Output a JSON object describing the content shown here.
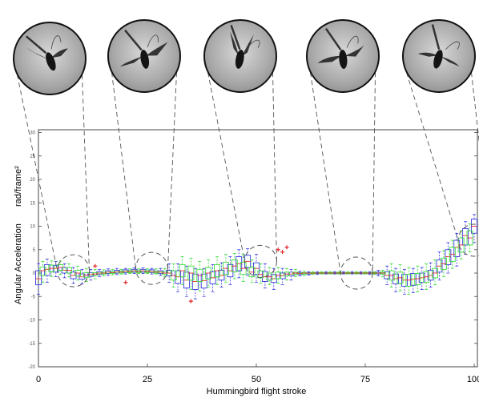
{
  "chart_data": {
    "type": "box",
    "title": "",
    "xlabel": "Hummingbird flight stroke",
    "ylabel": "Angular Acceleration",
    "yunit": "rad/frame²",
    "xlim": [
      0,
      100
    ],
    "ylim": [
      -20,
      30
    ],
    "xticks": [
      0,
      25,
      50,
      75,
      100
    ],
    "xtick_labels": [
      "0",
      "25",
      "50",
      "75",
      "100"
    ],
    "yticks": [
      -20,
      -15,
      -10,
      -5,
      0,
      5,
      10,
      15,
      20,
      25,
      30
    ],
    "grid": false,
    "legend": "none",
    "colors": {
      "series_a": "#3a3ae0",
      "series_b": "#3dde3d",
      "outlier": "#e02020",
      "annotation": "#555555"
    },
    "series": [
      {
        "color": "blue",
        "x": [
          0,
          2,
          4,
          6,
          8,
          10,
          12,
          14,
          16,
          18,
          20,
          22,
          24,
          26,
          28,
          30,
          32,
          34,
          36,
          38,
          40,
          42,
          44,
          46,
          48,
          50,
          52,
          54,
          56,
          58,
          60,
          62,
          64,
          66,
          68,
          70,
          72,
          74,
          76,
          78,
          80,
          82,
          84,
          86,
          88,
          90,
          92,
          94,
          96,
          98,
          100
        ],
        "median": [
          -1.2,
          0.8,
          1.0,
          0.6,
          -0.5,
          -0.8,
          -0.3,
          0.0,
          0.2,
          0.3,
          0.4,
          0.5,
          0.5,
          0.4,
          0.2,
          0.0,
          -0.8,
          -1.5,
          -1.8,
          -1.6,
          -1.0,
          -0.5,
          0.5,
          2.0,
          2.5,
          1.0,
          -0.8,
          -1.2,
          -0.6,
          -0.2,
          -0.1,
          0.0,
          0.0,
          0.0,
          0.0,
          0.0,
          0.0,
          0.0,
          0.0,
          0.0,
          -0.5,
          -1.2,
          -1.5,
          -1.3,
          -1.0,
          -0.5,
          1.5,
          3.5,
          5.5,
          8.0,
          10.0
        ],
        "q1": [
          -2.5,
          -0.5,
          0.2,
          0.0,
          -1.2,
          -1.3,
          -0.7,
          -0.3,
          -0.1,
          0.0,
          0.1,
          0.2,
          0.2,
          0.1,
          -0.1,
          -0.6,
          -2.2,
          -3.2,
          -3.5,
          -3.2,
          -2.3,
          -1.5,
          -0.8,
          0.5,
          1.2,
          -0.3,
          -1.8,
          -2.0,
          -1.2,
          -0.6,
          -0.3,
          -0.2,
          -0.1,
          -0.1,
          -0.1,
          -0.1,
          -0.1,
          -0.1,
          -0.1,
          -0.2,
          -1.2,
          -2.3,
          -2.8,
          -2.6,
          -2.0,
          -1.5,
          0.2,
          1.8,
          3.5,
          6.0,
          8.5
        ],
        "q3": [
          0.5,
          1.8,
          1.6,
          1.2,
          0.2,
          -0.2,
          0.1,
          0.3,
          0.5,
          0.6,
          0.7,
          0.8,
          0.8,
          0.7,
          0.5,
          0.6,
          0.5,
          0.2,
          -0.2,
          -0.2,
          0.3,
          0.6,
          1.8,
          3.5,
          3.8,
          2.2,
          0.3,
          -0.3,
          0.0,
          0.2,
          0.1,
          0.1,
          0.1,
          0.1,
          0.1,
          0.1,
          0.1,
          0.1,
          0.1,
          0.2,
          0.3,
          -0.2,
          -0.3,
          -0.1,
          0.0,
          0.6,
          2.8,
          5.0,
          7.0,
          9.5,
          11.5
        ],
        "min": [
          -4.5,
          -2.0,
          -0.8,
          -1.0,
          -2.2,
          -2.3,
          -1.5,
          -0.8,
          -0.5,
          -0.3,
          -0.2,
          -0.1,
          -0.1,
          -0.2,
          -0.5,
          -2.0,
          -4.0,
          -5.0,
          -5.5,
          -5.0,
          -4.0,
          -3.0,
          -2.5,
          -1.0,
          -0.5,
          -2.0,
          -3.2,
          -3.5,
          -2.5,
          -1.5,
          -0.6,
          -0.4,
          -0.3,
          -0.2,
          -0.2,
          -0.2,
          -0.2,
          -0.2,
          -0.3,
          -0.6,
          -2.5,
          -4.0,
          -4.5,
          -4.2,
          -3.5,
          -3.0,
          -1.5,
          0.0,
          1.5,
          4.0,
          6.5
        ],
        "max": [
          2.0,
          3.0,
          2.5,
          2.0,
          1.2,
          0.8,
          0.8,
          0.8,
          0.9,
          1.0,
          1.0,
          1.1,
          1.1,
          1.0,
          1.0,
          2.0,
          2.0,
          1.5,
          1.0,
          1.0,
          1.8,
          2.2,
          3.5,
          5.0,
          5.2,
          4.0,
          2.0,
          1.0,
          1.0,
          0.8,
          0.4,
          0.3,
          0.3,
          0.3,
          0.3,
          0.3,
          0.3,
          0.3,
          0.3,
          0.6,
          1.5,
          1.0,
          0.8,
          1.0,
          1.2,
          2.2,
          4.5,
          6.5,
          8.5,
          11.0,
          12.5
        ]
      },
      {
        "color": "green",
        "x": [
          1,
          3,
          5,
          7,
          9,
          11,
          13,
          15,
          17,
          19,
          21,
          23,
          25,
          27,
          29,
          31,
          33,
          35,
          37,
          39,
          41,
          43,
          45,
          47,
          49,
          51,
          53,
          55,
          57,
          59,
          61,
          63,
          65,
          67,
          69,
          71,
          73,
          75,
          77,
          79,
          81,
          83,
          85,
          87,
          89,
          91,
          93,
          95,
          97,
          99
        ],
        "median": [
          0.5,
          1.0,
          1.2,
          0.6,
          0.0,
          -0.4,
          -0.2,
          0.0,
          0.1,
          0.2,
          0.3,
          0.3,
          0.3,
          0.2,
          0.0,
          -0.5,
          0.5,
          0.0,
          -0.5,
          0.0,
          0.5,
          1.0,
          1.5,
          1.0,
          0.2,
          -0.3,
          -0.8,
          -0.5,
          -0.2,
          0.0,
          0.0,
          0.0,
          0.0,
          0.0,
          0.0,
          0.0,
          0.0,
          0.0,
          0.0,
          0.0,
          -0.5,
          -1.0,
          -1.5,
          -1.2,
          -0.8,
          0.0,
          2.0,
          4.0,
          6.0,
          7.5
        ],
        "q1": [
          -0.5,
          0.3,
          0.6,
          0.0,
          -0.6,
          -0.9,
          -0.5,
          -0.2,
          -0.1,
          0.0,
          0.1,
          0.1,
          0.1,
          0.0,
          -0.3,
          -1.5,
          -0.8,
          -1.5,
          -1.8,
          -1.2,
          -0.8,
          -0.3,
          0.3,
          -0.3,
          -0.8,
          -1.0,
          -1.5,
          -1.2,
          -0.6,
          -0.3,
          -0.2,
          -0.1,
          -0.1,
          -0.1,
          -0.1,
          -0.1,
          -0.1,
          -0.1,
          -0.1,
          -0.2,
          -1.5,
          -2.2,
          -2.8,
          -2.5,
          -2.0,
          -1.0,
          0.8,
          2.5,
          4.5,
          6.0
        ],
        "q3": [
          1.3,
          1.7,
          1.8,
          1.2,
          0.6,
          0.1,
          0.1,
          0.2,
          0.3,
          0.4,
          0.5,
          0.5,
          0.5,
          0.4,
          0.3,
          0.5,
          1.8,
          1.5,
          0.8,
          1.2,
          1.8,
          2.3,
          2.8,
          2.3,
          1.2,
          0.5,
          0.0,
          0.2,
          0.2,
          0.2,
          0.1,
          0.1,
          0.1,
          0.1,
          0.1,
          0.1,
          0.1,
          0.1,
          0.1,
          0.2,
          0.5,
          0.2,
          -0.3,
          -0.1,
          0.3,
          1.0,
          3.2,
          5.5,
          7.5,
          9.0
        ],
        "min": [
          -2.0,
          -0.8,
          -0.3,
          -0.8,
          -1.5,
          -1.8,
          -1.2,
          -0.6,
          -0.4,
          -0.2,
          -0.1,
          -0.1,
          -0.1,
          -0.2,
          -0.8,
          -3.0,
          -2.5,
          -3.5,
          -3.8,
          -3.0,
          -2.5,
          -2.0,
          -1.2,
          -1.8,
          -2.0,
          -2.2,
          -2.5,
          -2.2,
          -1.5,
          -0.8,
          -0.5,
          -0.3,
          -0.2,
          -0.2,
          -0.2,
          -0.2,
          -0.2,
          -0.2,
          -0.3,
          -0.8,
          -3.0,
          -3.8,
          -4.5,
          -4.0,
          -3.5,
          -2.5,
          -0.8,
          1.0,
          3.0,
          4.5
        ],
        "max": [
          2.5,
          2.6,
          2.6,
          2.0,
          1.5,
          1.0,
          0.8,
          0.7,
          0.8,
          0.8,
          0.9,
          0.9,
          0.9,
          0.9,
          1.0,
          2.0,
          3.5,
          3.2,
          2.5,
          2.8,
          3.5,
          4.0,
          4.2,
          4.0,
          2.8,
          2.0,
          1.2,
          1.2,
          1.0,
          0.8,
          0.4,
          0.3,
          0.3,
          0.3,
          0.3,
          0.3,
          0.3,
          0.3,
          0.3,
          0.6,
          2.0,
          1.8,
          1.2,
          1.5,
          2.0,
          2.8,
          4.8,
          7.0,
          9.0,
          10.5
        ]
      }
    ],
    "outliers": [
      {
        "x": 13,
        "y": 1.5
      },
      {
        "x": 20,
        "y": -2.0
      },
      {
        "x": 35,
        "y": -6.0
      },
      {
        "x": 55,
        "y": 5.0
      },
      {
        "x": 57,
        "y": 5.5
      },
      {
        "x": 56,
        "y": 4.5
      }
    ],
    "annotations": [
      {
        "x": 8,
        "y": 0.5
      },
      {
        "x": 26,
        "y": 1.0
      },
      {
        "x": 51,
        "y": 2.5
      },
      {
        "x": 73,
        "y": 0.0
      },
      {
        "x": 100,
        "y": 7.0
      }
    ]
  }
}
